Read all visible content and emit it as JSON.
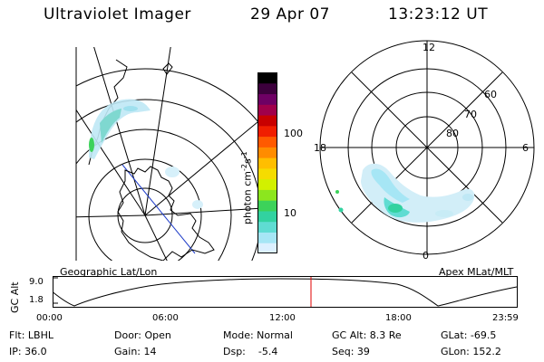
{
  "header": {
    "title": "Ultraviolet Imager",
    "date": "29 Apr 07",
    "time": "13:23:12 UT"
  },
  "left_panel": {
    "label": "Geographic Lat/Lon"
  },
  "colorbar": {
    "unit_main": "photon cm",
    "unit_exp1": "-2",
    "unit_s": "s",
    "unit_exp2": "-1",
    "tick_100": "100",
    "tick_10": "10",
    "colors": [
      "#dcf0ff",
      "#a6e6f5",
      "#5fdcd2",
      "#32d2a0",
      "#3cd25a",
      "#8ce61e",
      "#d2f000",
      "#f5dc00",
      "#ffbe00",
      "#ff8c00",
      "#ff5a00",
      "#f01e00",
      "#c80000",
      "#a0004b",
      "#6e0064",
      "#3c003c",
      "#000000"
    ]
  },
  "right_panel": {
    "label": "Apex MLat/MLT",
    "mlt_top": "12",
    "mlt_left": "18",
    "mlt_right": "6",
    "mlt_bottom": "0",
    "lat_60": "60",
    "lat_70": "70",
    "lat_80": "80"
  },
  "altitude_plot": {
    "ylabel": "GC Alt",
    "ytick_top": "9.0",
    "ytick_bottom": "1.8",
    "xticks": [
      "00:00",
      "06:00",
      "12:00",
      "18:00",
      "23:59"
    ],
    "marker_color": "#e00000"
  },
  "footer": {
    "flt": "Flt: LBHL",
    "ip": "IP: 36.0",
    "door": "Door: Open",
    "gain": "Gain: 14",
    "mode": "Mode: Normal",
    "dsp": "Dsp:    -5.4",
    "gc_alt": "GC Alt: 8.3 Re",
    "seq": "Seq: 39",
    "glat": "GLat: -69.5",
    "glon": "GLon: 152.2"
  }
}
